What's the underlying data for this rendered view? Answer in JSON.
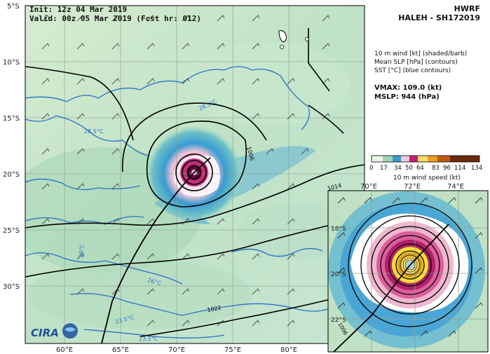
{
  "header": {
    "init": "Init:  12z 04 Mar 2019",
    "valid": "Valid: 00z 05 Mar 2019 (Fcst hr: 012)"
  },
  "title": {
    "model": "HWRF",
    "storm": "HALEH - SH172019"
  },
  "fields": {
    "line1": "10 m wind [kt] (shaded/barb)",
    "line2": "Mean SLP [hPa] (contours)",
    "line3": "SST [°C] (blue contours)"
  },
  "stats": {
    "vmax": "VMAX: 109.0 (kt)",
    "mslp": "MSLP:  944 (hPa)"
  },
  "colorbar": {
    "ticks": [
      "0",
      "17",
      "34",
      "50",
      "64",
      "83",
      "96",
      "114",
      "134"
    ],
    "label": "10 m wind speed (kt)"
  },
  "main_map": {
    "lat_labels": [
      "5°S",
      "10°S",
      "15°S",
      "20°S",
      "25°S",
      "30°S"
    ],
    "lon_labels": [
      "60°E",
      "65°E",
      "70°E",
      "75°E",
      "80°E"
    ],
    "sst_labels": [
      "28.5°C",
      "28.5°C",
      "26°C",
      "26°C",
      "23.5°C",
      "23.5°C"
    ],
    "slp_labels": [
      "1006",
      "1014",
      "1022"
    ]
  },
  "inset_map": {
    "lon_labels": [
      "70°E",
      "72°E",
      "74°E"
    ],
    "lat_labels": [
      "18°S",
      "20°S",
      "22°S"
    ],
    "slp_labels": [
      "1006"
    ]
  },
  "logo": {
    "text": "CIRA"
  },
  "colors": {
    "land": "#ffffff",
    "sea_low": "#cfe8c8",
    "sea_mid": "#a8d4b0",
    "wind_34": "#3a9bd0",
    "wind_50": "#f1b8d0",
    "wind_64": "#c02070",
    "wind_96": "#ffdd33",
    "sst_contour": "#2a6fc9",
    "slp_contour": "#000000"
  }
}
